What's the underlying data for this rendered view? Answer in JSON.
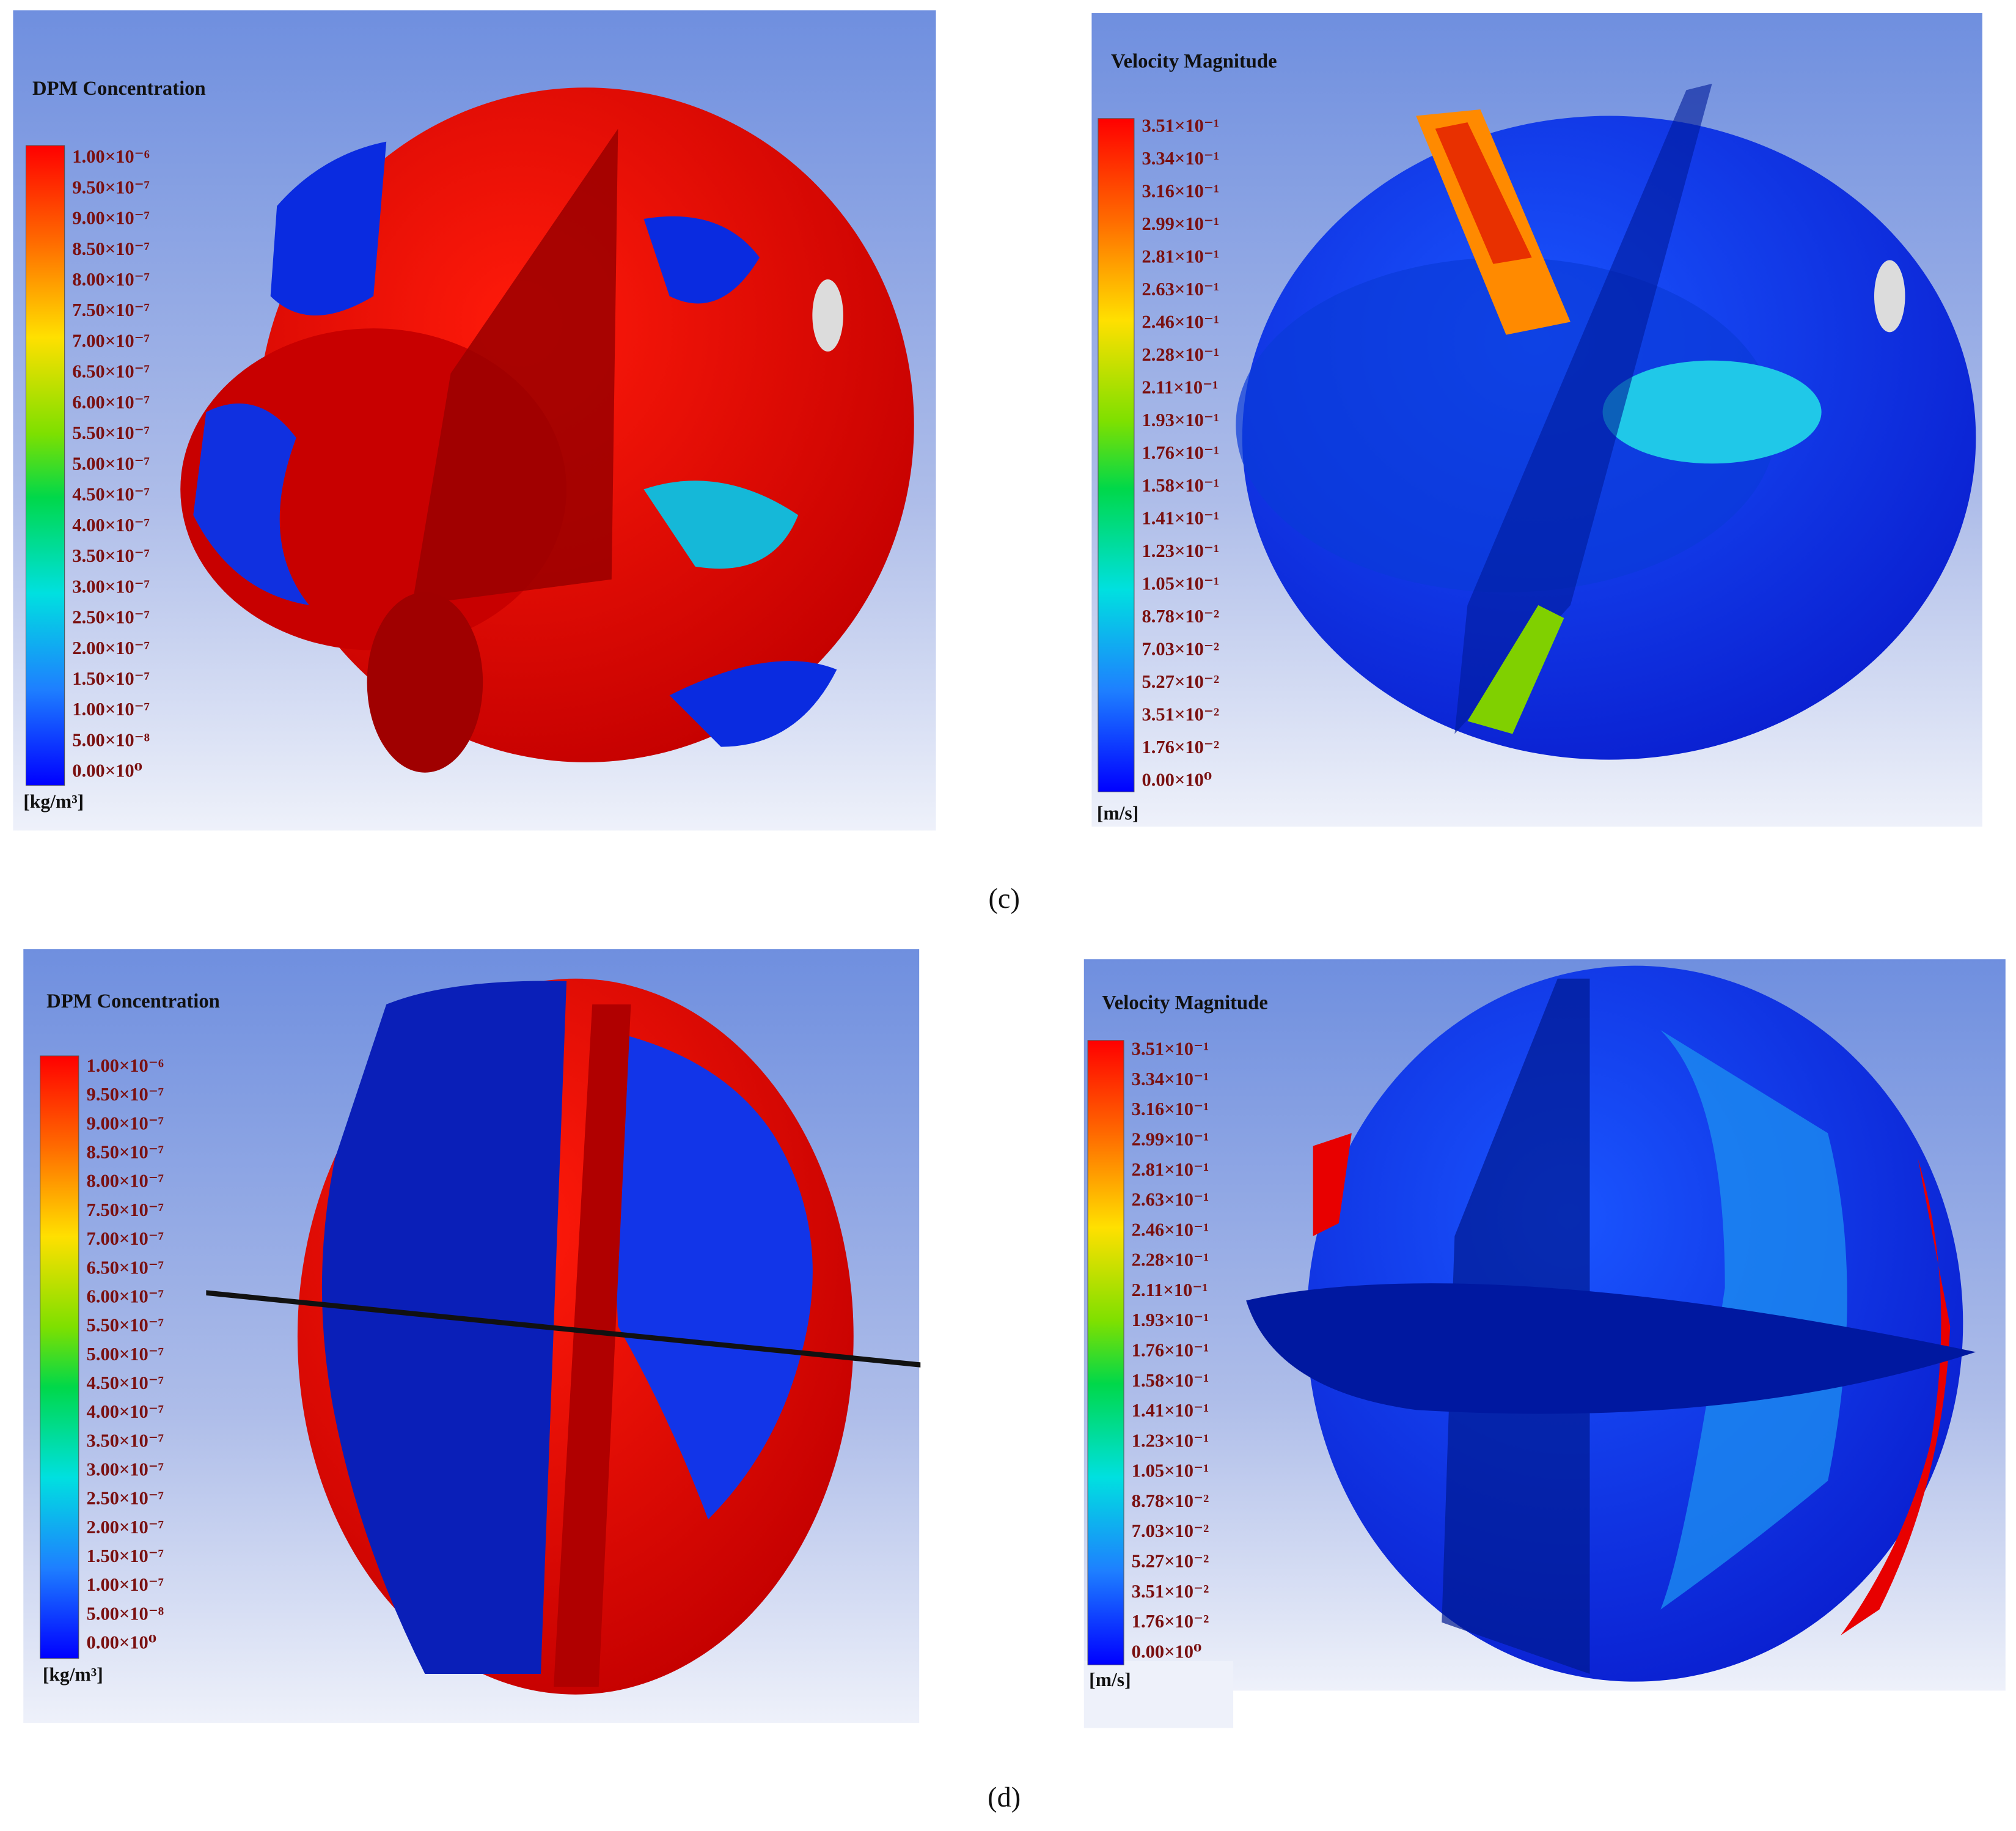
{
  "panels": [
    {
      "caption": "(c)",
      "plots": [
        {
          "title": "DPM Concentration",
          "unit": "[kg/m³]",
          "legend": [
            "1.00×10⁻⁶",
            "9.50×10⁻⁷",
            "9.00×10⁻⁷",
            "8.50×10⁻⁷",
            "8.00×10⁻⁷",
            "7.50×10⁻⁷",
            "7.00×10⁻⁷",
            "6.50×10⁻⁷",
            "6.00×10⁻⁷",
            "5.50×10⁻⁷",
            "5.00×10⁻⁷",
            "4.50×10⁻⁷",
            "4.00×10⁻⁷",
            "3.50×10⁻⁷",
            "3.00×10⁻⁷",
            "2.50×10⁻⁷",
            "2.00×10⁻⁷",
            "1.50×10⁻⁷",
            "1.00×10⁻⁷",
            "5.00×10⁻⁸",
            "0.00×10⁰"
          ]
        },
        {
          "title": "Velocity Magnitude",
          "unit": "[m/s]",
          "legend": [
            "3.51×10⁻¹",
            "3.34×10⁻¹",
            "3.16×10⁻¹",
            "2.99×10⁻¹",
            "2.81×10⁻¹",
            "2.63×10⁻¹",
            "2.46×10⁻¹",
            "2.28×10⁻¹",
            "2.11×10⁻¹",
            "1.93×10⁻¹",
            "1.76×10⁻¹",
            "1.58×10⁻¹",
            "1.41×10⁻¹",
            "1.23×10⁻¹",
            "1.05×10⁻¹",
            "8.78×10⁻²",
            "7.03×10⁻²",
            "5.27×10⁻²",
            "3.51×10⁻²",
            "1.76×10⁻²",
            "0.00×10⁰"
          ]
        }
      ]
    },
    {
      "caption": "(d)",
      "plots": [
        {
          "title": "DPM Concentration",
          "unit": "[kg/m³]",
          "legend": [
            "1.00×10⁻⁶",
            "9.50×10⁻⁷",
            "9.00×10⁻⁷",
            "8.50×10⁻⁷",
            "8.00×10⁻⁷",
            "7.50×10⁻⁷",
            "7.00×10⁻⁷",
            "6.50×10⁻⁷",
            "6.00×10⁻⁷",
            "5.50×10⁻⁷",
            "5.00×10⁻⁷",
            "4.50×10⁻⁷",
            "4.00×10⁻⁷",
            "3.50×10⁻⁷",
            "3.00×10⁻⁷",
            "2.50×10⁻⁷",
            "2.00×10⁻⁷",
            "1.50×10⁻⁷",
            "1.00×10⁻⁷",
            "5.00×10⁻⁸",
            "0.00×10⁰"
          ]
        },
        {
          "title": "Velocity Magnitude",
          "unit": "[m/s]",
          "legend": [
            "3.51×10⁻¹",
            "3.34×10⁻¹",
            "3.16×10⁻¹",
            "2.99×10⁻¹",
            "2.81×10⁻¹",
            "2.63×10⁻¹",
            "2.46×10⁻¹",
            "2.28×10⁻¹",
            "2.11×10⁻¹",
            "1.93×10⁻¹",
            "1.76×10⁻¹",
            "1.58×10⁻¹",
            "1.41×10⁻¹",
            "1.23×10⁻¹",
            "1.05×10⁻¹",
            "8.78×10⁻²",
            "7.03×10⁻²",
            "5.27×10⁻²",
            "3.51×10⁻²",
            "1.76×10⁻²",
            "0.00×10⁰"
          ]
        }
      ]
    }
  ]
}
